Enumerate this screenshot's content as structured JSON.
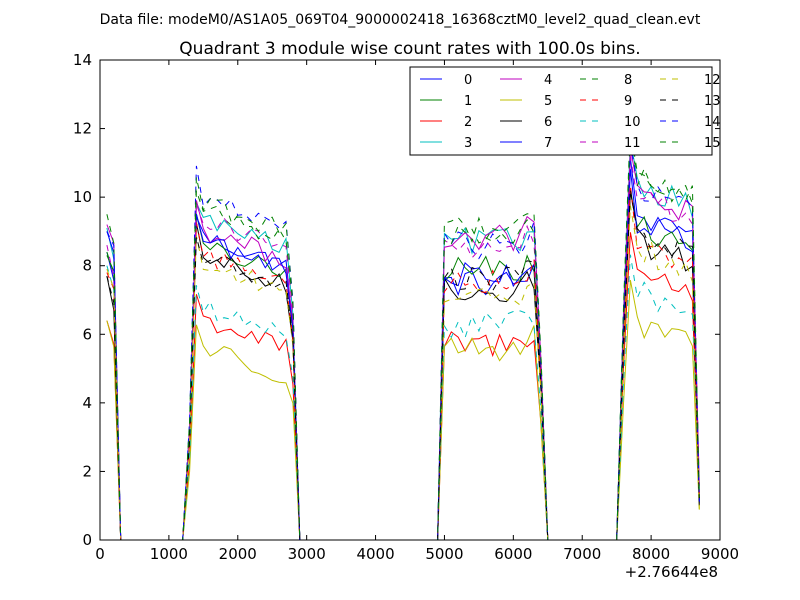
{
  "chart_data": {
    "type": "line",
    "suptitle": "Data file: modeM0/AS1A05_069T04_9000002418_16368cztM0_level2_quad_clean.evt",
    "title": "Quadrant 3 module wise count rates with 100.0s bins.",
    "xlabel": "",
    "ylabel": "",
    "x_offset_label": "+2.76644e8",
    "xlim": [
      0,
      9000
    ],
    "ylim": [
      0,
      14
    ],
    "xticks": [
      0,
      1000,
      2000,
      3000,
      4000,
      5000,
      6000,
      7000,
      8000,
      9000
    ],
    "yticks": [
      0,
      2,
      4,
      6,
      8,
      10,
      12,
      14
    ],
    "legend_position": "top-right",
    "legend_columns": 4,
    "series": [
      {
        "name": "0",
        "color": "#0000ff",
        "dash": "solid"
      },
      {
        "name": "1",
        "color": "#008000",
        "dash": "solid"
      },
      {
        "name": "2",
        "color": "#ff0000",
        "dash": "solid"
      },
      {
        "name": "3",
        "color": "#00bfbf",
        "dash": "solid"
      },
      {
        "name": "4",
        "color": "#bf00bf",
        "dash": "solid"
      },
      {
        "name": "5",
        "color": "#bfbf00",
        "dash": "solid"
      },
      {
        "name": "6",
        "color": "#000000",
        "dash": "solid"
      },
      {
        "name": "7",
        "color": "#0000ff",
        "dash": "solid"
      },
      {
        "name": "8",
        "color": "#008000",
        "dash": "dashed"
      },
      {
        "name": "9",
        "color": "#ff0000",
        "dash": "dashed"
      },
      {
        "name": "10",
        "color": "#00bfbf",
        "dash": "dashed"
      },
      {
        "name": "11",
        "color": "#bf00bf",
        "dash": "dashed"
      },
      {
        "name": "12",
        "color": "#bfbf00",
        "dash": "dashed"
      },
      {
        "name": "13",
        "color": "#000000",
        "dash": "dashed"
      },
      {
        "name": "14",
        "color": "#0000ff",
        "dash": "dashed"
      },
      {
        "name": "15",
        "color": "#008000",
        "dash": "dashed"
      }
    ],
    "time_bins": [
      100,
      200,
      300,
      1200,
      1300,
      1400,
      1500,
      1600,
      1700,
      1800,
      1900,
      2000,
      2100,
      2200,
      2300,
      2400,
      2500,
      2600,
      2700,
      2800,
      2900,
      4900,
      5000,
      5100,
      5200,
      5300,
      5400,
      5500,
      5600,
      5700,
      5800,
      5900,
      6000,
      6100,
      6200,
      6300,
      6400,
      6500,
      7500,
      7600,
      7700,
      7800,
      7900,
      8000,
      8100,
      8200,
      8300,
      8400,
      8500,
      8600,
      8700
    ],
    "segments": [
      {
        "start": 100,
        "end": 300,
        "values_at_start": [
          8.4,
          8.3,
          6.4,
          9.1,
          9.2,
          6.4,
          7.7,
          9.0,
          9.5,
          7.8,
          8.0,
          8.6,
          7.9,
          7.7,
          9.0,
          8.4
        ],
        "drop_to_zero_at": 300
      },
      {
        "start": 1200,
        "end": 2900,
        "rise_from_zero_at": 1200,
        "peak_range": [
          5.3,
          11.2
        ],
        "level_range": [
          5.3,
          10.4
        ],
        "drop_to_zero_at": 2900
      },
      {
        "start": 4900,
        "end": 6500,
        "rise_from_zero_at": 4900,
        "peak_range": [
          5.2,
          9.8
        ],
        "level_range": [
          5.2,
          9.8
        ],
        "drop_to_zero_at": 6500
      },
      {
        "start": 7500,
        "end": 8700,
        "rise_from_zero_at": 7500,
        "peak_range": [
          6.5,
          12.1
        ],
        "level_range": [
          5.6,
          11.4
        ],
        "end_values_range": [
          0.8,
          1.6
        ]
      }
    ],
    "module_levels": {
      "seg2": [
        8.9,
        8.6,
        6.5,
        9.4,
        9.1,
        5.7,
        8.3,
        8.8,
        9.7,
        8.4,
        6.8,
        9.4,
        8.1,
        8.3,
        10.0,
        9.9
      ],
      "seg3": [
        7.5,
        7.9,
        5.7,
        8.7,
        8.8,
        5.6,
        7.3,
        7.8,
        9.1,
        7.6,
        6.3,
        8.5,
        7.2,
        7.6,
        8.6,
        8.9
      ],
      "seg4": [
        9.5,
        9.1,
        7.8,
        10.4,
        10.1,
        6.2,
        8.7,
        9.3,
        10.6,
        8.7,
        7.2,
        10.0,
        8.5,
        8.9,
        10.2,
        10.5
      ]
    }
  }
}
